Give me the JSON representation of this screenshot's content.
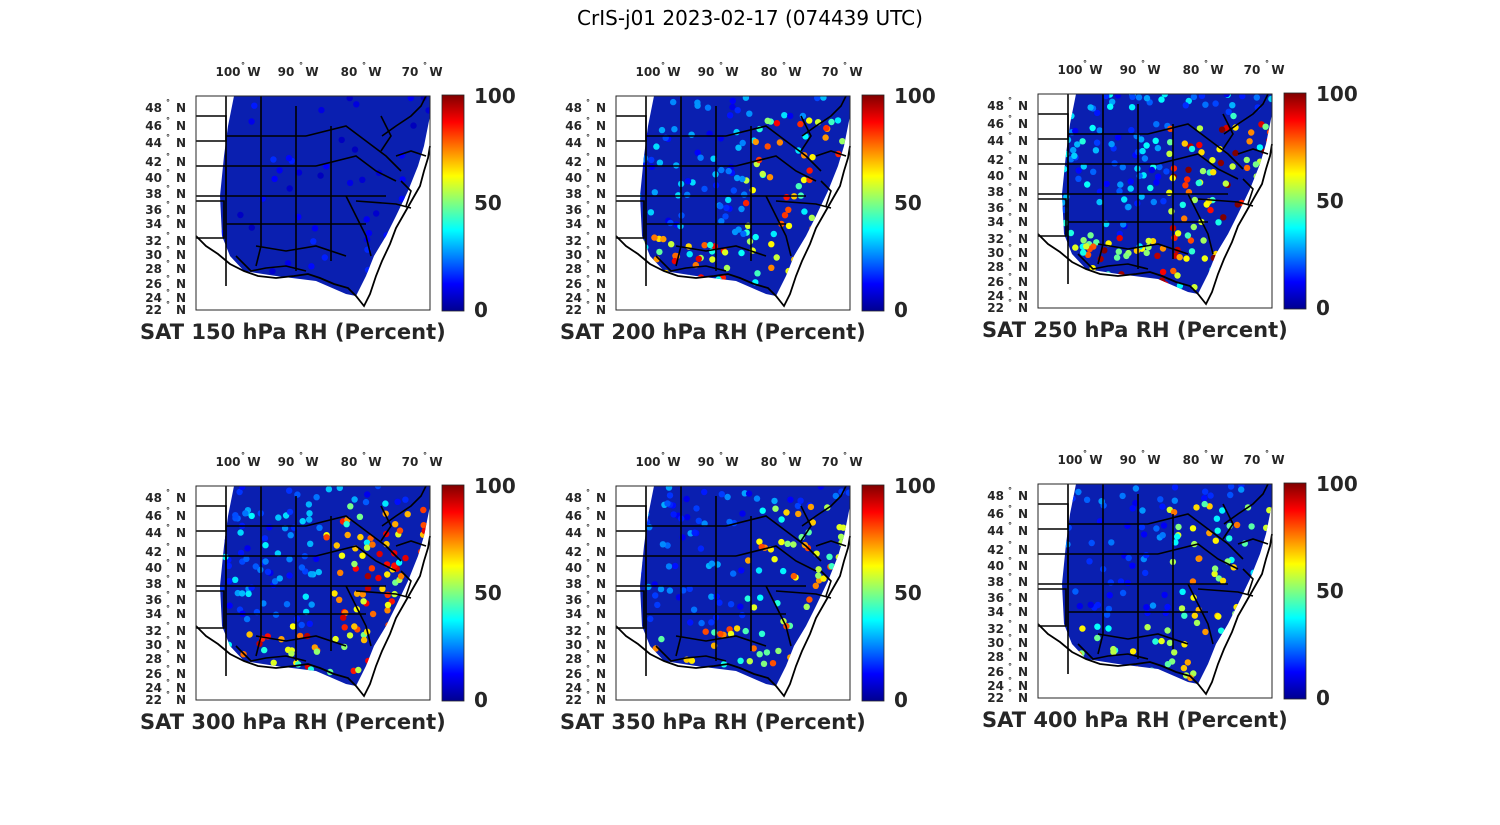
{
  "figure": {
    "title": "CrIS-j01 2023-02-17 (074439 UTC)"
  },
  "axes": {
    "lon_ticks": [
      "100",
      "90",
      "80",
      "70"
    ],
    "lon_hemisphere": "W",
    "lat_ticks": [
      "48",
      "46",
      "44",
      "42",
      "40",
      "38",
      "36",
      "34",
      "32",
      "30",
      "28",
      "26",
      "24",
      "22"
    ],
    "lat_hemisphere": "N",
    "degree_symbol": "°"
  },
  "colorbar": {
    "min_label": "0",
    "mid_label": "50",
    "max_label": "100",
    "colormap": [
      "#00008f",
      "#0000ff",
      "#0080ff",
      "#00ffff",
      "#80ff80",
      "#ffff00",
      "#ff8000",
      "#ff0000",
      "#800000"
    ]
  },
  "panels": [
    {
      "id": "p150",
      "caption": "SAT 150 hPa RH (Percent)",
      "moist_level": 0.05
    },
    {
      "id": "p200",
      "caption": "SAT 200 hPa RH (Percent)",
      "moist_level": 0.55
    },
    {
      "id": "p250",
      "caption": "SAT 250 hPa RH (Percent)",
      "moist_level": 0.7
    },
    {
      "id": "p300",
      "caption": "SAT 300 hPa RH (Percent)",
      "moist_level": 0.6
    },
    {
      "id": "p350",
      "caption": "SAT 350 hPa RH (Percent)",
      "moist_level": 0.45
    },
    {
      "id": "p400",
      "caption": "SAT 400 hPa RH (Percent)",
      "moist_level": 0.4
    }
  ]
}
